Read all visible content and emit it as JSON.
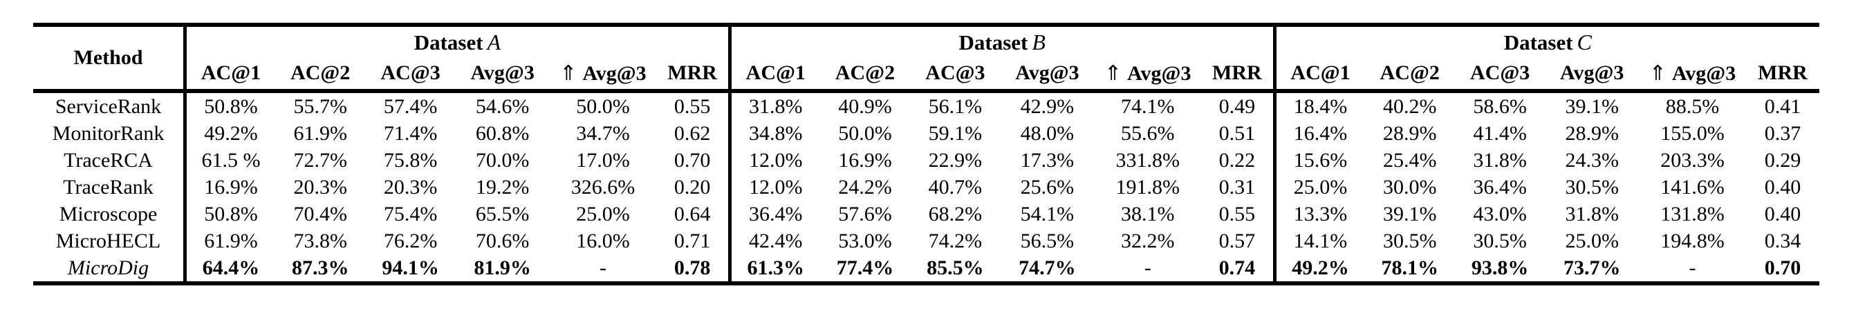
{
  "page": {
    "background_color": "#ffffff",
    "text_color": "#000000"
  },
  "table": {
    "method_header": "Method",
    "arrow_prefix": "⇑",
    "datasets": [
      {
        "label": "Dataset",
        "letter": "A",
        "columns": [
          "AC@1",
          "AC@2",
          "AC@3",
          "Avg@3",
          "Avg@3",
          "MRR"
        ]
      },
      {
        "label": "Dataset",
        "letter": "B",
        "columns": [
          "AC@1",
          "AC@2",
          "AC@3",
          "Avg@3",
          "Avg@3",
          "MRR"
        ]
      },
      {
        "label": "Dataset",
        "letter": "C",
        "columns": [
          "AC@1",
          "AC@2",
          "AC@3",
          "Avg@3",
          "Avg@3",
          "MRR"
        ]
      }
    ],
    "rows": [
      {
        "method": "ServiceRank",
        "italic": false,
        "bold_values": false,
        "values": [
          "50.8%",
          "55.7%",
          "57.4%",
          "54.6%",
          "50.0%",
          "0.55",
          "31.8%",
          "40.9%",
          "56.1%",
          "42.9%",
          "74.1%",
          "0.49",
          "18.4%",
          "40.2%",
          "58.6%",
          "39.1%",
          "88.5%",
          "0.41"
        ]
      },
      {
        "method": "MonitorRank",
        "italic": false,
        "bold_values": false,
        "values": [
          "49.2%",
          "61.9%",
          "71.4%",
          "60.8%",
          "34.7%",
          "0.62",
          "34.8%",
          "50.0%",
          "59.1%",
          "48.0%",
          "55.6%",
          "0.51",
          "16.4%",
          "28.9%",
          "41.4%",
          "28.9%",
          "155.0%",
          "0.37"
        ]
      },
      {
        "method": "TraceRCA",
        "italic": false,
        "bold_values": false,
        "values": [
          "61.5 %",
          "72.7%",
          "75.8%",
          "70.0%",
          "17.0%",
          "0.70",
          "12.0%",
          "16.9%",
          "22.9%",
          "17.3%",
          "331.8%",
          "0.22",
          "15.6%",
          "25.4%",
          "31.8%",
          "24.3%",
          "203.3%",
          "0.29"
        ]
      },
      {
        "method": "TraceRank",
        "italic": false,
        "bold_values": false,
        "values": [
          "16.9%",
          "20.3%",
          "20.3%",
          "19.2%",
          "326.6%",
          "0.20",
          "12.0%",
          "24.2%",
          "40.7%",
          "25.6%",
          "191.8%",
          "0.31",
          "25.0%",
          "30.0%",
          "36.4%",
          "30.5%",
          "141.6%",
          "0.40"
        ]
      },
      {
        "method": "Microscope",
        "italic": false,
        "bold_values": false,
        "values": [
          "50.8%",
          "70.4%",
          "75.4%",
          "65.5%",
          "25.0%",
          "0.64",
          "36.4%",
          "57.6%",
          "68.2%",
          "54.1%",
          "38.1%",
          "0.55",
          "13.3%",
          "39.1%",
          "43.0%",
          "31.8%",
          "131.8%",
          "0.40"
        ]
      },
      {
        "method": "MicroHECL",
        "italic": false,
        "bold_values": false,
        "values": [
          "61.9%",
          "73.8%",
          "76.2%",
          "70.6%",
          "16.0%",
          "0.71",
          "42.4%",
          "53.0%",
          "74.2%",
          "56.5%",
          "32.2%",
          "0.57",
          "14.1%",
          "30.5%",
          "30.5%",
          "25.0%",
          "194.8%",
          "0.34"
        ]
      },
      {
        "method": "MicroDig",
        "italic": true,
        "bold_values": true,
        "values": [
          "64.4%",
          "87.3%",
          "94.1%",
          "81.9%",
          "-",
          "0.78",
          "61.3%",
          "77.4%",
          "85.5%",
          "74.7%",
          "-",
          "0.74",
          "49.2%",
          "78.1%",
          "93.8%",
          "73.7%",
          "-",
          "0.70"
        ]
      }
    ]
  }
}
